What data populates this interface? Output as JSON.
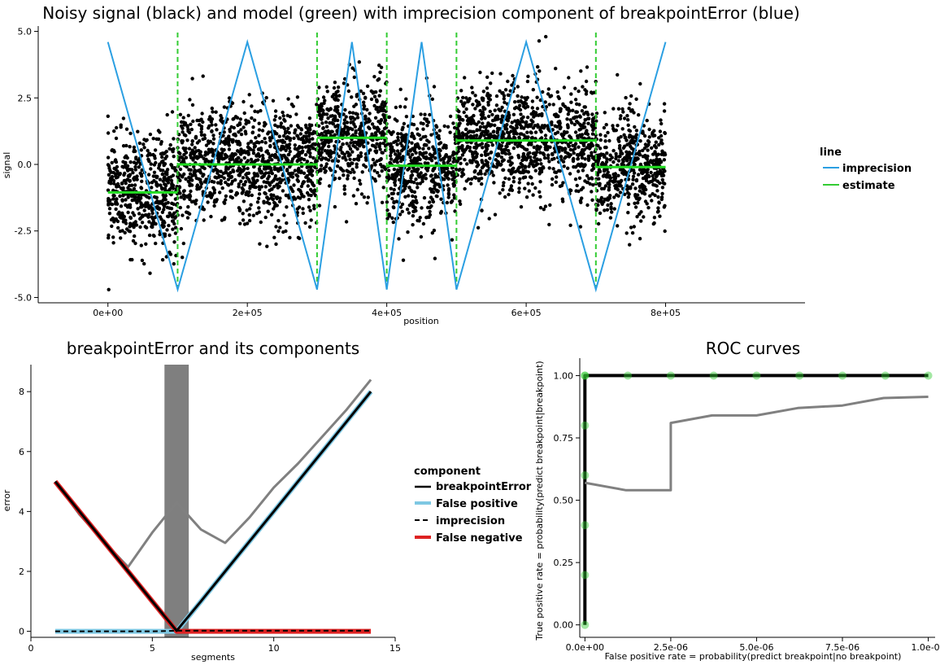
{
  "chart_data": [
    {
      "type": "scatter",
      "title": "Noisy signal (black) and model (green) with imprecision component of breakpointError (blue)",
      "xlabel": "position",
      "ylabel": "signal",
      "xlim": [
        -100000,
        1000000
      ],
      "ylim": [
        -5.2,
        5.2
      ],
      "xticks": [
        0,
        200000,
        400000,
        600000,
        800000
      ],
      "xtick_labels": [
        "0e+00",
        "2e+05",
        "4e+05",
        "6e+05",
        "8e+05"
      ],
      "yticks": [
        -5,
        -2.5,
        0,
        2.5,
        5
      ],
      "ytick_labels": [
        "-5.0",
        "-2.5",
        "0.0",
        "2.5",
        "5.0"
      ],
      "legend": {
        "title": "line",
        "position": "right",
        "items": [
          {
            "label": "imprecision",
            "color": "#2b9fe2"
          },
          {
            "label": "estimate",
            "color": "#33cc33"
          }
        ]
      },
      "colors": {
        "points": "#000000",
        "imprecision": "#2b9fe2",
        "estimate": "#22dd22",
        "breakpoint": "#33cc33"
      },
      "segments": [
        {
          "start": 0,
          "end": 100000,
          "mean": -1.05
        },
        {
          "start": 100000,
          "end": 300000,
          "mean": 0.0
        },
        {
          "start": 300000,
          "end": 400000,
          "mean": 1.0
        },
        {
          "start": 400000,
          "end": 500000,
          "mean": -0.05
        },
        {
          "start": 500000,
          "end": 700000,
          "mean": 0.9
        },
        {
          "start": 700000,
          "end": 800000,
          "mean": -0.1
        }
      ],
      "noise_sd": 1.05,
      "breakpoints": [
        100000,
        300000,
        400000,
        500000,
        700000
      ],
      "imprecision": {
        "x": [
          0,
          100000,
          200000,
          300000,
          350000,
          400000,
          450000,
          500000,
          600000,
          700000,
          800000
        ],
        "y": [
          4.6,
          -4.7,
          4.6,
          -4.7,
          4.6,
          -4.7,
          4.6,
          -4.7,
          4.6,
          -4.7,
          4.6
        ]
      }
    },
    {
      "type": "line",
      "title": "breakpointError and its components",
      "xlabel": "segments",
      "ylabel": "error",
      "xlim": [
        0,
        15
      ],
      "ylim": [
        -0.2,
        8.9
      ],
      "xticks": [
        0,
        5,
        10,
        15
      ],
      "yticks": [
        0,
        2,
        4,
        6,
        8
      ],
      "shaded_band": [
        5.5,
        6.5
      ],
      "legend": {
        "title": "component",
        "position": "right",
        "items": [
          {
            "label": "breakpointError",
            "color": "#000000"
          },
          {
            "label": "False positive",
            "color": "#7ec8e3"
          },
          {
            "label": "imprecision",
            "color": "#000000"
          },
          {
            "label": "False negative",
            "color": "#dd2222"
          }
        ]
      },
      "x": [
        1,
        2,
        3,
        4,
        5,
        6,
        7,
        8,
        9,
        10,
        11,
        12,
        13,
        14
      ],
      "series": [
        {
          "label": "gray",
          "color": "#808080",
          "values": [
            5.0,
            3.9,
            3.0,
            2.15,
            3.3,
            4.3,
            3.4,
            2.95,
            3.8,
            4.8,
            5.6,
            6.5,
            7.4,
            8.4
          ]
        },
        {
          "label": "False positive",
          "color": "#7ec8e3",
          "values": [
            0,
            0,
            0,
            0,
            0,
            0,
            1,
            2,
            3,
            4,
            5,
            6,
            7,
            8
          ]
        },
        {
          "label": "False negative",
          "color": "#dd2222",
          "values": [
            5,
            4,
            3,
            2,
            1,
            0,
            0,
            0,
            0,
            0,
            0,
            0,
            0,
            0
          ]
        },
        {
          "label": "breakpointError",
          "color": "#000000",
          "values": [
            5.0,
            4.0,
            3.0,
            2.0,
            1.0,
            0.02,
            1.0,
            2.0,
            3.0,
            4.0,
            5.0,
            6.0,
            7.0,
            8.0
          ]
        },
        {
          "label": "imprecision",
          "color": "#000000",
          "values": [
            0.0,
            0.0,
            0.0,
            0.0,
            0.0,
            0.02,
            0.02,
            0.02,
            0.02,
            0.02,
            0.02,
            0.02,
            0.02,
            0.02
          ]
        }
      ]
    },
    {
      "type": "line",
      "title": "ROC curves",
      "xlabel": "False positive rate = probability(predict breakpoint|no breakpoint)",
      "ylabel": "True positive rate = probability(predict breakpoint|breakpoint)",
      "xlim": [
        -1.5e-07,
        1.02e-05
      ],
      "ylim": [
        -0.05,
        1.07
      ],
      "xticks": [
        0,
        2.5e-06,
        5e-06,
        7.5e-06,
        1e-05
      ],
      "xtick_labels": [
        "0.0e+00",
        "2.5e-06",
        "5.0e-06",
        "7.5e-06",
        "1.0e-05"
      ],
      "yticks": [
        0,
        0.25,
        0.5,
        0.75,
        1
      ],
      "ytick_labels": [
        "0.00",
        "0.25",
        "0.50",
        "0.75",
        "1.00"
      ],
      "series": [
        {
          "label": "black",
          "color": "#000000",
          "x": [
            0,
            0,
            1e-05
          ],
          "y": [
            0,
            1,
            1
          ]
        },
        {
          "label": "gray",
          "color": "#808080",
          "x": [
            0,
            1.2e-06,
            2.5e-06,
            2.5e-06,
            3.7e-06,
            5e-06,
            6.2e-06,
            7.5e-06,
            8.7e-06,
            1e-05
          ],
          "y": [
            0.57,
            0.54,
            0.54,
            0.81,
            0.84,
            0.84,
            0.87,
            0.88,
            0.91,
            0.915
          ]
        }
      ],
      "points": {
        "color": "#33cc33",
        "x": [
          0,
          0,
          0,
          0,
          0,
          0,
          0,
          1.25e-06,
          2.5e-06,
          3.75e-06,
          5e-06,
          6.25e-06,
          7.5e-06,
          8.75e-06,
          1e-05
        ],
        "y": [
          0,
          0.2,
          0.4,
          0.6,
          0.8,
          1.0,
          1.0,
          1.0,
          1.0,
          1.0,
          1.0,
          1.0,
          1.0,
          1.0,
          1.0
        ]
      }
    }
  ]
}
